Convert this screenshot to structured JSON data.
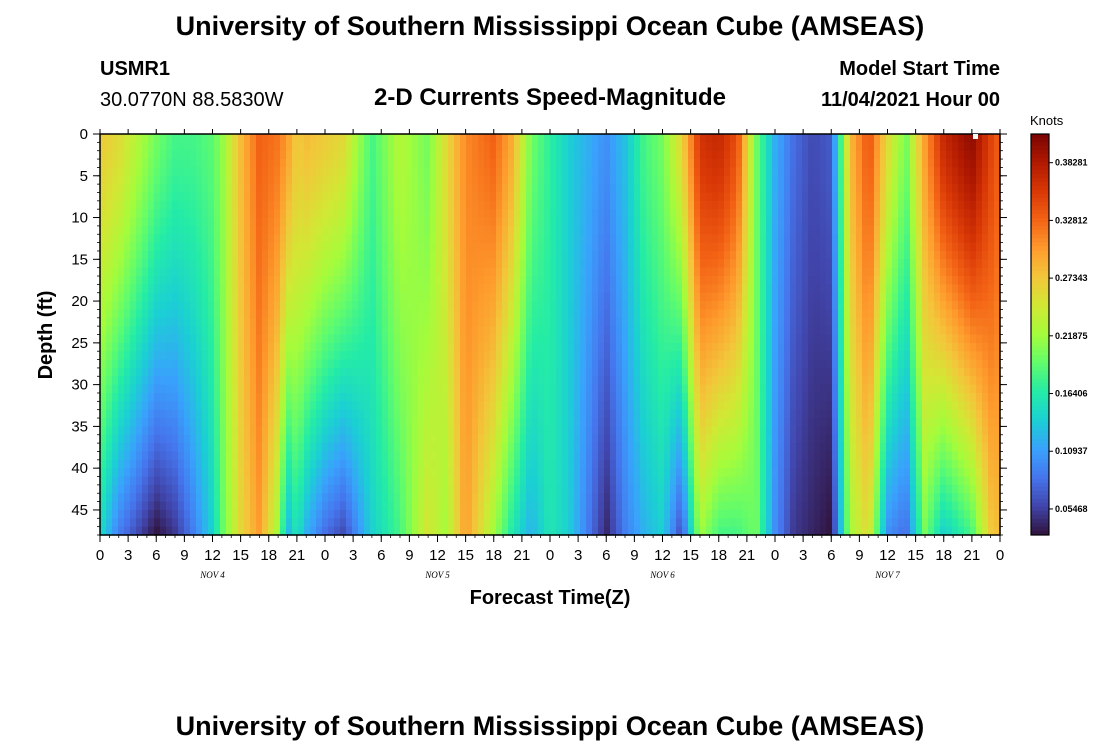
{
  "header": {
    "title": "University of Southern Mississippi Ocean Cube (AMSEAS)",
    "station": "USMR1",
    "location": "30.0770N  88.5830W",
    "subtitle": "2-D Currents Speed-Magnitude",
    "start_label": "Model Start Time",
    "start_value": "11/04/2021 Hour 00"
  },
  "footer": {
    "title": "University of Southern Mississippi Ocean Cube (AMSEAS)"
  },
  "chart_data": {
    "type": "heatmap",
    "title": "2-D Currents Speed-Magnitude",
    "xlabel": "Forecast Time(Z)",
    "ylabel": "Depth (ft)",
    "x_ticks": [
      "0",
      "3",
      "6",
      "9",
      "12",
      "15",
      "18",
      "21",
      "0",
      "3",
      "6",
      "9",
      "12",
      "15",
      "18",
      "21",
      "0",
      "3",
      "6",
      "9",
      "12",
      "15",
      "18",
      "21",
      "0",
      "3",
      "6",
      "9",
      "12",
      "15",
      "18",
      "21",
      "0"
    ],
    "day_labels": [
      "NOV 4",
      "NOV 5",
      "NOV 6",
      "NOV 7"
    ],
    "y_ticks": [
      "0",
      "5",
      "10",
      "15",
      "20",
      "25",
      "30",
      "35",
      "40",
      "45"
    ],
    "xlim_hours": [
      0,
      96
    ],
    "ylim_ft": [
      0,
      48
    ],
    "colorbar": {
      "units": "Knots",
      "range": [
        0.03,
        0.41
      ],
      "ticks": [
        "0.38281",
        "0.32812",
        "0.27343",
        "0.21875",
        "0.16406",
        "0.10937",
        "0.05468"
      ],
      "tick_values": [
        0.38281,
        0.32812,
        0.27343,
        0.21875,
        0.16406,
        0.10937,
        0.05468
      ],
      "colormap": [
        "#30123b",
        "#4145ab",
        "#4675ed",
        "#39a2fc",
        "#1bcfd4",
        "#24eca6",
        "#61fc6c",
        "#a4fc3b",
        "#d1e834",
        "#f3c63a",
        "#fe9b2d",
        "#f36315",
        "#d93806",
        "#b11901",
        "#7a0403"
      ]
    },
    "columns": [
      {
        "hour": 0,
        "speed_surface": 0.27,
        "speed_bottom": 0.15
      },
      {
        "hour": 2,
        "speed_surface": 0.26,
        "speed_bottom": 0.09
      },
      {
        "hour": 4,
        "speed_surface": 0.23,
        "speed_bottom": 0.06
      },
      {
        "hour": 6,
        "speed_surface": 0.2,
        "speed_bottom": 0.03
      },
      {
        "hour": 8,
        "speed_surface": 0.18,
        "speed_bottom": 0.05
      },
      {
        "hour": 10,
        "speed_surface": 0.18,
        "speed_bottom": 0.09
      },
      {
        "hour": 12,
        "speed_surface": 0.19,
        "speed_bottom": 0.14
      },
      {
        "hour": 13,
        "speed_surface": 0.21,
        "speed_bottom": 0.19
      },
      {
        "hour": 15,
        "speed_surface": 0.28,
        "speed_bottom": 0.26
      },
      {
        "hour": 17,
        "speed_surface": 0.33,
        "speed_bottom": 0.3
      },
      {
        "hour": 19,
        "speed_surface": 0.32,
        "speed_bottom": 0.22
      },
      {
        "hour": 20,
        "speed_surface": 0.3,
        "speed_bottom": 0.12
      },
      {
        "hour": 21,
        "speed_surface": 0.27,
        "speed_bottom": 0.16
      },
      {
        "hour": 22,
        "speed_surface": 0.28,
        "speed_bottom": 0.12
      },
      {
        "hour": 24,
        "speed_surface": 0.27,
        "speed_bottom": 0.08
      },
      {
        "hour": 26,
        "speed_surface": 0.26,
        "speed_bottom": 0.06
      },
      {
        "hour": 29,
        "speed_surface": 0.18,
        "speed_bottom": 0.14
      },
      {
        "hour": 32,
        "speed_surface": 0.23,
        "speed_bottom": 0.18
      },
      {
        "hour": 35,
        "speed_surface": 0.2,
        "speed_bottom": 0.25
      },
      {
        "hour": 37,
        "speed_surface": 0.26,
        "speed_bottom": 0.22
      },
      {
        "hour": 39,
        "speed_surface": 0.31,
        "speed_bottom": 0.3
      },
      {
        "hour": 42,
        "speed_surface": 0.33,
        "speed_bottom": 0.22
      },
      {
        "hour": 44,
        "speed_surface": 0.29,
        "speed_bottom": 0.16
      },
      {
        "hour": 46,
        "speed_surface": 0.2,
        "speed_bottom": 0.12
      },
      {
        "hour": 48,
        "speed_surface": 0.17,
        "speed_bottom": 0.16
      },
      {
        "hour": 50,
        "speed_surface": 0.14,
        "speed_bottom": 0.14
      },
      {
        "hour": 52,
        "speed_surface": 0.12,
        "speed_bottom": 0.09
      },
      {
        "hour": 54,
        "speed_surface": 0.1,
        "speed_bottom": 0.04
      },
      {
        "hour": 56,
        "speed_surface": 0.13,
        "speed_bottom": 0.09
      },
      {
        "hour": 58,
        "speed_surface": 0.18,
        "speed_bottom": 0.12
      },
      {
        "hour": 60,
        "speed_surface": 0.2,
        "speed_bottom": 0.14
      },
      {
        "hour": 62,
        "speed_surface": 0.26,
        "speed_bottom": 0.06
      },
      {
        "hour": 64,
        "speed_surface": 0.36,
        "speed_bottom": 0.22
      },
      {
        "hour": 66,
        "speed_surface": 0.37,
        "speed_bottom": 0.18
      },
      {
        "hour": 68,
        "speed_surface": 0.34,
        "speed_bottom": 0.18
      },
      {
        "hour": 70,
        "speed_surface": 0.2,
        "speed_bottom": 0.2
      },
      {
        "hour": 72,
        "speed_surface": 0.12,
        "speed_bottom": 0.1
      },
      {
        "hour": 74,
        "speed_surface": 0.08,
        "speed_bottom": 0.05
      },
      {
        "hour": 76,
        "speed_surface": 0.06,
        "speed_bottom": 0.04
      },
      {
        "hour": 78,
        "speed_surface": 0.07,
        "speed_bottom": 0.03
      },
      {
        "hour": 80,
        "speed_surface": 0.28,
        "speed_bottom": 0.22
      },
      {
        "hour": 82,
        "speed_surface": 0.34,
        "speed_bottom": 0.26
      },
      {
        "hour": 84,
        "speed_surface": 0.26,
        "speed_bottom": 0.1
      },
      {
        "hour": 86,
        "speed_surface": 0.2,
        "speed_bottom": 0.08
      },
      {
        "hour": 88,
        "speed_surface": 0.3,
        "speed_bottom": 0.2
      },
      {
        "hour": 90,
        "speed_surface": 0.37,
        "speed_bottom": 0.14
      },
      {
        "hour": 93,
        "speed_surface": 0.4,
        "speed_bottom": 0.18
      },
      {
        "hour": 95,
        "speed_surface": 0.35,
        "speed_bottom": 0.27
      },
      {
        "hour": 96,
        "speed_surface": 0.33,
        "speed_bottom": 0.28
      }
    ]
  }
}
